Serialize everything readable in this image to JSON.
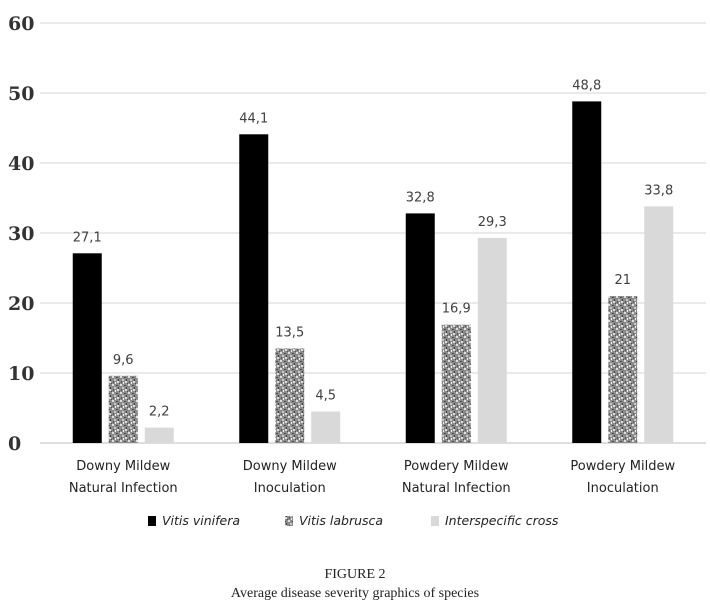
{
  "chart_data": {
    "type": "bar",
    "categories": [
      [
        "Downy Mildew",
        "Natural Infection"
      ],
      [
        "Downy Mildew",
        "Inoculation"
      ],
      [
        "Powdery Mildew",
        "Natural Infection"
      ],
      [
        "Powdery Mildew",
        "Inoculation"
      ]
    ],
    "series": [
      {
        "name": "Vitis vinifera",
        "values": [
          27.1,
          44.1,
          32.8,
          48.8
        ],
        "labels": [
          "27,1",
          "44,1",
          "32,8",
          "48,8"
        ],
        "color": "#000000",
        "pattern": "solid"
      },
      {
        "name": "Vitis labrusca",
        "values": [
          9.6,
          13.5,
          16.9,
          21
        ],
        "labels": [
          "9,6",
          "13,5",
          "16,9",
          "21"
        ],
        "color": "#8a8a8a",
        "pattern": "granite"
      },
      {
        "name": "Interspecific cross",
        "values": [
          2.2,
          4.5,
          29.3,
          33.8
        ],
        "labels": [
          "2,2",
          "4,5",
          "29,3",
          "33,8"
        ],
        "color": "#d9d9d9",
        "pattern": "solid"
      }
    ],
    "ylim": [
      0,
      60
    ],
    "yticks": [
      0,
      10,
      20,
      30,
      40,
      50,
      60
    ],
    "grid": true,
    "legend_position": "bottom"
  },
  "caption": {
    "figure_number": "FIGURE 2",
    "title": "Average disease severity graphics of species"
  }
}
